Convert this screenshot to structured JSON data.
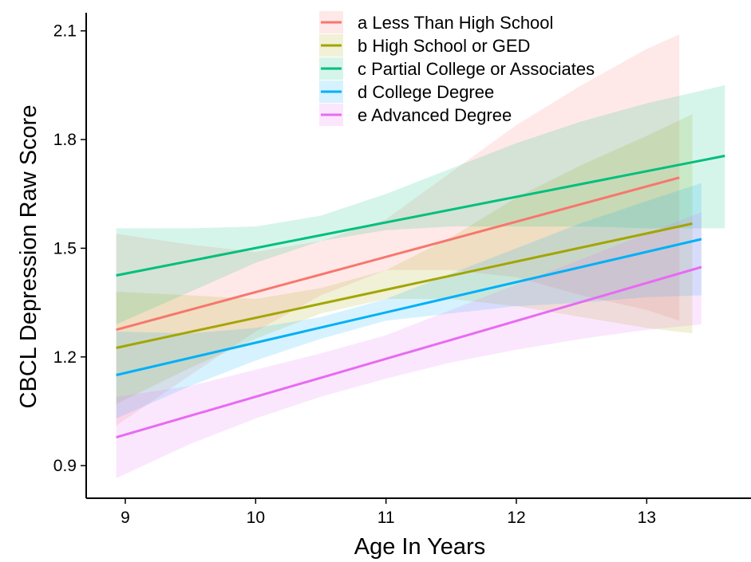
{
  "chart_data": {
    "type": "line",
    "xlabel": "Age In Years",
    "ylabel": "CBCL Depression Raw Score",
    "xlim": [
      8.7,
      13.8
    ],
    "ylim": [
      0.81,
      2.15
    ],
    "x_ticks": [
      {
        "value": 9,
        "label": "9"
      },
      {
        "value": 10,
        "label": "10"
      },
      {
        "value": 11,
        "label": "11"
      },
      {
        "value": 12,
        "label": "12"
      },
      {
        "value": 13,
        "label": "13"
      }
    ],
    "y_ticks": [
      {
        "value": 0.9,
        "label": "0.9"
      },
      {
        "value": 1.2,
        "label": "1.2"
      },
      {
        "value": 1.5,
        "label": "1.5"
      },
      {
        "value": 1.8,
        "label": "1.8"
      },
      {
        "value": 2.1,
        "label": "2.1"
      }
    ],
    "grid": false,
    "legend_position": "top-center",
    "series": [
      {
        "key": "a",
        "name": "Less Than High School",
        "color": "#F8766D",
        "x": [
          8.93,
          13.25
        ],
        "y": [
          1.275,
          1.695
        ],
        "ci_x": [
          8.93,
          9.5,
          10,
          10.5,
          11,
          11.5,
          12,
          12.5,
          13,
          13.25
        ],
        "ci_lower": [
          1.01,
          1.15,
          1.27,
          1.37,
          1.44,
          1.44,
          1.42,
          1.37,
          1.33,
          1.3
        ],
        "ci_upper": [
          1.54,
          1.51,
          1.49,
          1.52,
          1.58,
          1.71,
          1.84,
          1.95,
          2.05,
          2.09
        ]
      },
      {
        "key": "b",
        "name": "High School or GED",
        "color": "#A3A500",
        "x": [
          8.93,
          13.35
        ],
        "y": [
          1.225,
          1.568
        ],
        "ci_x": [
          8.93,
          9.5,
          10,
          10.5,
          11,
          11.5,
          12,
          12.5,
          13,
          13.35
        ],
        "ci_lower": [
          1.07,
          1.17,
          1.25,
          1.32,
          1.36,
          1.36,
          1.34,
          1.31,
          1.28,
          1.265
        ],
        "ci_upper": [
          1.38,
          1.37,
          1.36,
          1.39,
          1.44,
          1.53,
          1.64,
          1.73,
          1.81,
          1.87
        ]
      },
      {
        "key": "c",
        "name": "Partial College or Associates",
        "color": "#00BF7D",
        "x": [
          8.93,
          13.6
        ],
        "y": [
          1.425,
          1.755
        ],
        "ci_x": [
          8.93,
          9.5,
          10,
          10.5,
          11,
          11.5,
          12,
          12.5,
          13,
          13.6
        ],
        "ci_lower": [
          1.29,
          1.38,
          1.46,
          1.52,
          1.55,
          1.56,
          1.56,
          1.56,
          1.555,
          1.555
        ],
        "ci_upper": [
          1.555,
          1.555,
          1.56,
          1.59,
          1.65,
          1.72,
          1.79,
          1.85,
          1.9,
          1.95
        ]
      },
      {
        "key": "d",
        "name": "College Degree",
        "color": "#00B0F6",
        "x": [
          8.93,
          13.42
        ],
        "y": [
          1.15,
          1.525
        ],
        "ci_x": [
          8.93,
          9.5,
          10,
          10.5,
          11,
          11.5,
          12,
          12.5,
          13,
          13.42
        ],
        "ci_lower": [
          1.03,
          1.12,
          1.19,
          1.25,
          1.3,
          1.32,
          1.34,
          1.35,
          1.365,
          1.37
        ],
        "ci_upper": [
          1.27,
          1.265,
          1.28,
          1.31,
          1.36,
          1.43,
          1.5,
          1.57,
          1.63,
          1.68
        ]
      },
      {
        "key": "e",
        "name": "Advanced Degree",
        "color": "#E76BF3",
        "x": [
          8.93,
          13.42
        ],
        "y": [
          0.978,
          1.448
        ],
        "ci_x": [
          8.93,
          9.5,
          10,
          10.5,
          11,
          11.5,
          12,
          12.5,
          13,
          13.42
        ],
        "ci_lower": [
          0.865,
          0.96,
          1.03,
          1.09,
          1.14,
          1.185,
          1.22,
          1.25,
          1.275,
          1.29
        ],
        "ci_upper": [
          1.09,
          1.12,
          1.165,
          1.21,
          1.26,
          1.33,
          1.4,
          1.47,
          1.54,
          1.6
        ]
      }
    ]
  }
}
